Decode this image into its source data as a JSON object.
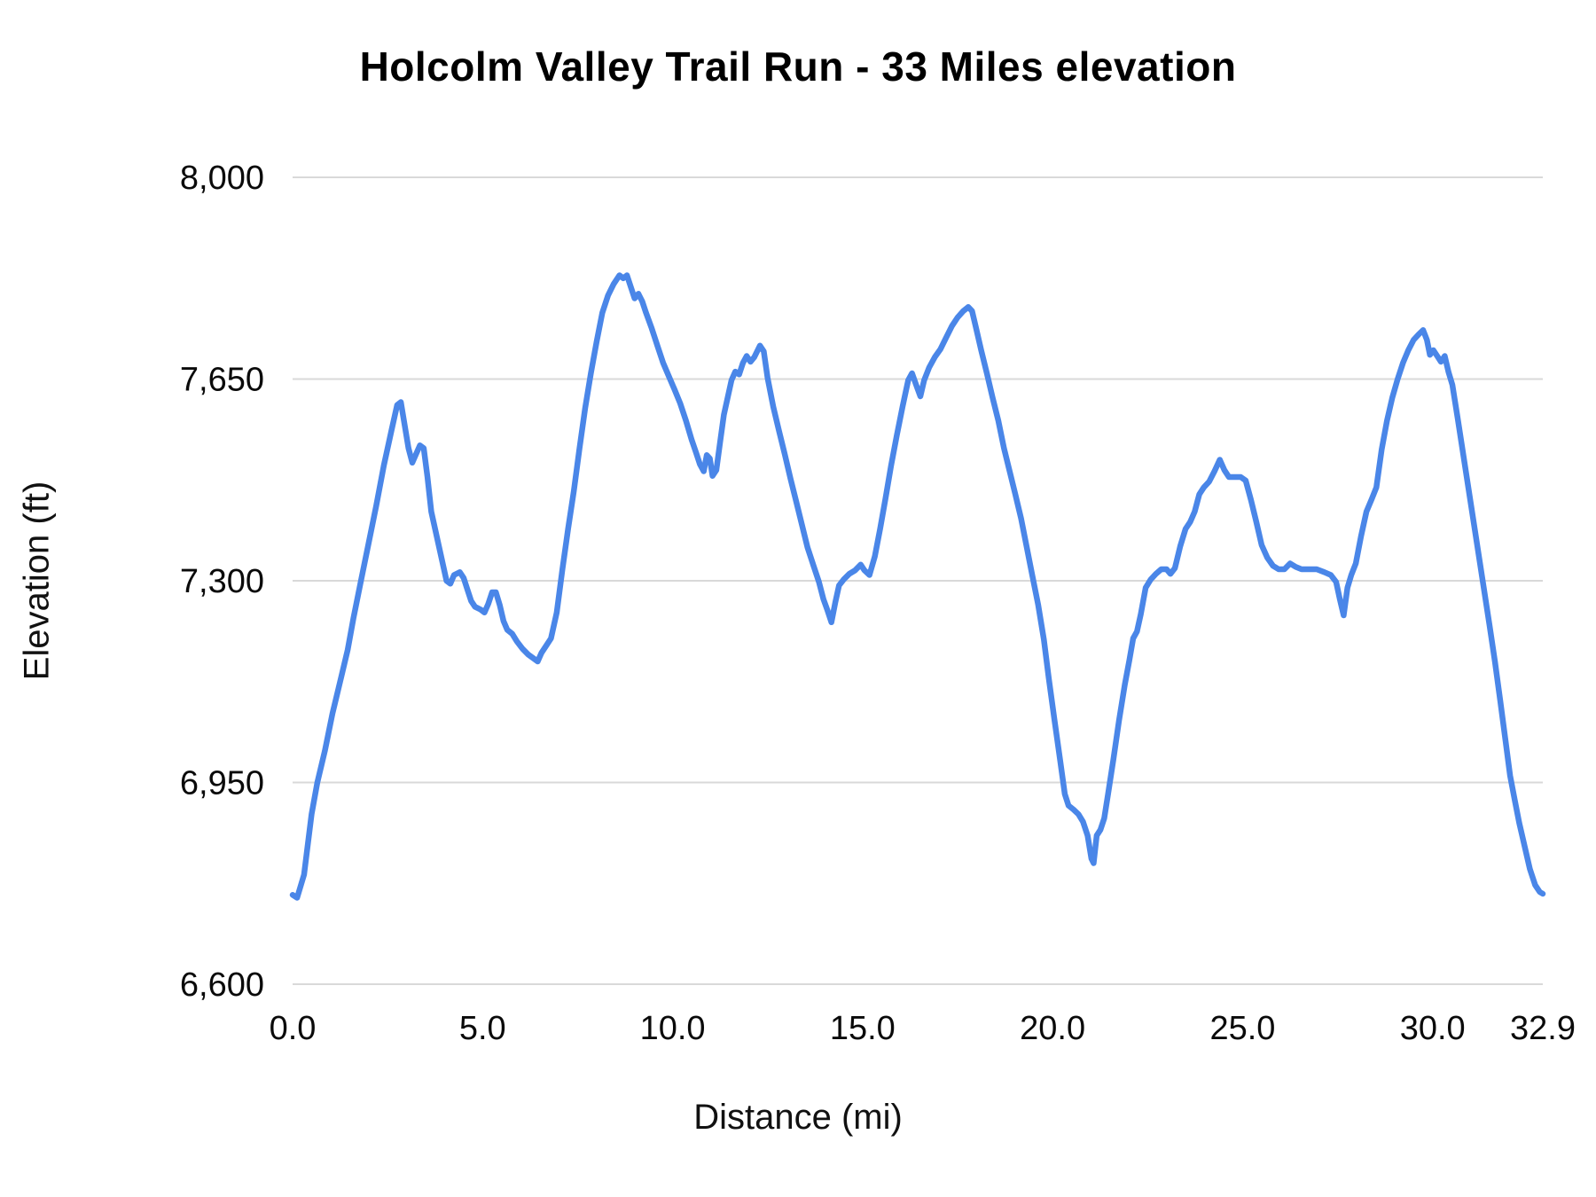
{
  "chart_data": {
    "type": "line",
    "title": "Holcolm Valley Trail Run - 33 Miles elevation",
    "xlabel": "Distance (mi)",
    "ylabel": "Elevation (ft)",
    "xlim": [
      0,
      32.9
    ],
    "ylim": [
      6600,
      8000
    ],
    "grid": "horizontal",
    "legend": "none",
    "gridline_color": "#d9d9d9",
    "line_color": "#4a86e8",
    "x_ticks": [
      {
        "value": 0,
        "label": "0.0"
      },
      {
        "value": 5,
        "label": "5.0"
      },
      {
        "value": 10,
        "label": "10.0"
      },
      {
        "value": 15,
        "label": "15.0"
      },
      {
        "value": 20,
        "label": "20.0"
      },
      {
        "value": 25,
        "label": "25.0"
      },
      {
        "value": 30,
        "label": "30.0"
      },
      {
        "value": 32.9,
        "label": "32.9"
      }
    ],
    "y_ticks": [
      {
        "value": 6600,
        "label": "6,600"
      },
      {
        "value": 6950,
        "label": "6,950"
      },
      {
        "value": 7300,
        "label": "7,300"
      },
      {
        "value": 7650,
        "label": "7,650"
      },
      {
        "value": 8000,
        "label": "8,000"
      }
    ],
    "series": [
      {
        "name": "Elevation",
        "points": [
          [
            0,
            6755
          ],
          [
            0.12,
            6750
          ],
          [
            0.3,
            6790
          ],
          [
            0.5,
            6895
          ],
          [
            0.65,
            6950
          ],
          [
            0.85,
            7005
          ],
          [
            1.05,
            7070
          ],
          [
            1.25,
            7125
          ],
          [
            1.45,
            7180
          ],
          [
            1.6,
            7235
          ],
          [
            1.8,
            7300
          ],
          [
            2,
            7365
          ],
          [
            2.2,
            7430
          ],
          [
            2.4,
            7500
          ],
          [
            2.6,
            7560
          ],
          [
            2.75,
            7605
          ],
          [
            2.85,
            7610
          ],
          [
            2.95,
            7570
          ],
          [
            3.05,
            7530
          ],
          [
            3.15,
            7505
          ],
          [
            3.25,
            7520
          ],
          [
            3.35,
            7535
          ],
          [
            3.45,
            7530
          ],
          [
            3.55,
            7480
          ],
          [
            3.65,
            7420
          ],
          [
            3.75,
            7390
          ],
          [
            3.85,
            7360
          ],
          [
            3.95,
            7330
          ],
          [
            4.05,
            7300
          ],
          [
            4.15,
            7295
          ],
          [
            4.25,
            7310
          ],
          [
            4.4,
            7315
          ],
          [
            4.5,
            7305
          ],
          [
            4.6,
            7285
          ],
          [
            4.7,
            7265
          ],
          [
            4.8,
            7255
          ],
          [
            4.95,
            7250
          ],
          [
            5.05,
            7245
          ],
          [
            5.15,
            7260
          ],
          [
            5.25,
            7280
          ],
          [
            5.35,
            7280
          ],
          [
            5.45,
            7258
          ],
          [
            5.55,
            7230
          ],
          [
            5.65,
            7215
          ],
          [
            5.78,
            7208
          ],
          [
            5.9,
            7195
          ],
          [
            6.05,
            7182
          ],
          [
            6.2,
            7172
          ],
          [
            6.35,
            7165
          ],
          [
            6.45,
            7160
          ],
          [
            6.55,
            7175
          ],
          [
            6.68,
            7188
          ],
          [
            6.8,
            7200
          ],
          [
            6.95,
            7245
          ],
          [
            7.1,
            7320
          ],
          [
            7.25,
            7390
          ],
          [
            7.4,
            7455
          ],
          [
            7.55,
            7530
          ],
          [
            7.7,
            7600
          ],
          [
            7.85,
            7660
          ],
          [
            8,
            7715
          ],
          [
            8.15,
            7765
          ],
          [
            8.3,
            7795
          ],
          [
            8.45,
            7815
          ],
          [
            8.6,
            7830
          ],
          [
            8.7,
            7825
          ],
          [
            8.8,
            7830
          ],
          [
            8.9,
            7810
          ],
          [
            9,
            7790
          ],
          [
            9.1,
            7798
          ],
          [
            9.2,
            7785
          ],
          [
            9.3,
            7765
          ],
          [
            9.45,
            7738
          ],
          [
            9.6,
            7708
          ],
          [
            9.75,
            7678
          ],
          [
            9.9,
            7655
          ],
          [
            10.05,
            7632
          ],
          [
            10.2,
            7608
          ],
          [
            10.35,
            7578
          ],
          [
            10.5,
            7545
          ],
          [
            10.62,
            7522
          ],
          [
            10.72,
            7502
          ],
          [
            10.82,
            7490
          ],
          [
            10.9,
            7518
          ],
          [
            10.98,
            7512
          ],
          [
            11.05,
            7482
          ],
          [
            11.15,
            7492
          ],
          [
            11.25,
            7540
          ],
          [
            11.35,
            7588
          ],
          [
            11.45,
            7618
          ],
          [
            11.55,
            7648
          ],
          [
            11.65,
            7663
          ],
          [
            11.75,
            7658
          ],
          [
            11.85,
            7678
          ],
          [
            11.95,
            7690
          ],
          [
            12.05,
            7680
          ],
          [
            12.15,
            7688
          ],
          [
            12.3,
            7708
          ],
          [
            12.4,
            7698
          ],
          [
            12.5,
            7652
          ],
          [
            12.65,
            7602
          ],
          [
            12.8,
            7560
          ],
          [
            12.95,
            7520
          ],
          [
            13.1,
            7478
          ],
          [
            13.25,
            7438
          ],
          [
            13.4,
            7398
          ],
          [
            13.55,
            7358
          ],
          [
            13.7,
            7328
          ],
          [
            13.85,
            7298
          ],
          [
            13.97,
            7268
          ],
          [
            14.08,
            7248
          ],
          [
            14.18,
            7228
          ],
          [
            14.28,
            7262
          ],
          [
            14.38,
            7292
          ],
          [
            14.5,
            7302
          ],
          [
            14.65,
            7312
          ],
          [
            14.8,
            7318
          ],
          [
            14.95,
            7328
          ],
          [
            15.05,
            7318
          ],
          [
            15.18,
            7310
          ],
          [
            15.32,
            7342
          ],
          [
            15.46,
            7390
          ],
          [
            15.6,
            7442
          ],
          [
            15.75,
            7500
          ],
          [
            15.9,
            7552
          ],
          [
            16.05,
            7602
          ],
          [
            16.2,
            7648
          ],
          [
            16.3,
            7660
          ],
          [
            16.42,
            7638
          ],
          [
            16.52,
            7620
          ],
          [
            16.62,
            7648
          ],
          [
            16.75,
            7670
          ],
          [
            16.9,
            7688
          ],
          [
            17.05,
            7702
          ],
          [
            17.2,
            7722
          ],
          [
            17.35,
            7742
          ],
          [
            17.5,
            7757
          ],
          [
            17.65,
            7768
          ],
          [
            17.78,
            7775
          ],
          [
            17.88,
            7768
          ],
          [
            17.98,
            7740
          ],
          [
            18.12,
            7700
          ],
          [
            18.27,
            7660
          ],
          [
            18.42,
            7618
          ],
          [
            18.57,
            7578
          ],
          [
            18.72,
            7530
          ],
          [
            18.87,
            7490
          ],
          [
            19.02,
            7450
          ],
          [
            19.17,
            7408
          ],
          [
            19.32,
            7358
          ],
          [
            19.47,
            7308
          ],
          [
            19.62,
            7258
          ],
          [
            19.77,
            7198
          ],
          [
            19.9,
            7130
          ],
          [
            20.05,
            7058
          ],
          [
            20.2,
            6988
          ],
          [
            20.32,
            6930
          ],
          [
            20.42,
            6910
          ],
          [
            20.55,
            6903
          ],
          [
            20.68,
            6895
          ],
          [
            20.8,
            6882
          ],
          [
            20.92,
            6858
          ],
          [
            21.02,
            6818
          ],
          [
            21.08,
            6810
          ],
          [
            21.16,
            6858
          ],
          [
            21.26,
            6868
          ],
          [
            21.36,
            6888
          ],
          [
            21.46,
            6930
          ],
          [
            21.6,
            6990
          ],
          [
            21.75,
            7058
          ],
          [
            21.9,
            7120
          ],
          [
            22.02,
            7162
          ],
          [
            22.12,
            7200
          ],
          [
            22.22,
            7212
          ],
          [
            22.32,
            7242
          ],
          [
            22.45,
            7288
          ],
          [
            22.58,
            7302
          ],
          [
            22.72,
            7312
          ],
          [
            22.86,
            7320
          ],
          [
            23,
            7320
          ],
          [
            23.1,
            7312
          ],
          [
            23.22,
            7322
          ],
          [
            23.36,
            7360
          ],
          [
            23.5,
            7390
          ],
          [
            23.62,
            7402
          ],
          [
            23.74,
            7420
          ],
          [
            23.86,
            7450
          ],
          [
            23.98,
            7462
          ],
          [
            24.12,
            7472
          ],
          [
            24.26,
            7490
          ],
          [
            24.4,
            7510
          ],
          [
            24.52,
            7492
          ],
          [
            24.64,
            7480
          ],
          [
            24.8,
            7480
          ],
          [
            24.95,
            7480
          ],
          [
            25.08,
            7474
          ],
          [
            25.22,
            7440
          ],
          [
            25.36,
            7402
          ],
          [
            25.5,
            7362
          ],
          [
            25.65,
            7340
          ],
          [
            25.8,
            7326
          ],
          [
            25.95,
            7320
          ],
          [
            26.1,
            7320
          ],
          [
            26.25,
            7330
          ],
          [
            26.4,
            7324
          ],
          [
            26.55,
            7320
          ],
          [
            26.75,
            7320
          ],
          [
            26.95,
            7320
          ],
          [
            27.15,
            7315
          ],
          [
            27.32,
            7310
          ],
          [
            27.46,
            7298
          ],
          [
            27.56,
            7268
          ],
          [
            27.66,
            7240
          ],
          [
            27.76,
            7288
          ],
          [
            27.86,
            7310
          ],
          [
            27.98,
            7330
          ],
          [
            28.12,
            7378
          ],
          [
            28.26,
            7420
          ],
          [
            28.4,
            7442
          ],
          [
            28.52,
            7462
          ],
          [
            28.66,
            7528
          ],
          [
            28.8,
            7578
          ],
          [
            28.94,
            7618
          ],
          [
            29.08,
            7650
          ],
          [
            29.22,
            7678
          ],
          [
            29.36,
            7700
          ],
          [
            29.5,
            7718
          ],
          [
            29.64,
            7728
          ],
          [
            29.75,
            7735
          ],
          [
            29.85,
            7718
          ],
          [
            29.93,
            7692
          ],
          [
            30.02,
            7700
          ],
          [
            30.12,
            7690
          ],
          [
            30.22,
            7680
          ],
          [
            30.32,
            7690
          ],
          [
            30.42,
            7662
          ],
          [
            30.52,
            7640
          ],
          [
            30.66,
            7582
          ],
          [
            30.8,
            7522
          ],
          [
            30.94,
            7462
          ],
          [
            31.08,
            7402
          ],
          [
            31.22,
            7342
          ],
          [
            31.36,
            7282
          ],
          [
            31.5,
            7222
          ],
          [
            31.64,
            7160
          ],
          [
            31.78,
            7092
          ],
          [
            31.92,
            7022
          ],
          [
            32.04,
            6962
          ],
          [
            32.16,
            6920
          ],
          [
            32.28,
            6880
          ],
          [
            32.42,
            6840
          ],
          [
            32.56,
            6800
          ],
          [
            32.7,
            6772
          ],
          [
            32.82,
            6760
          ],
          [
            32.9,
            6757
          ]
        ]
      }
    ]
  }
}
